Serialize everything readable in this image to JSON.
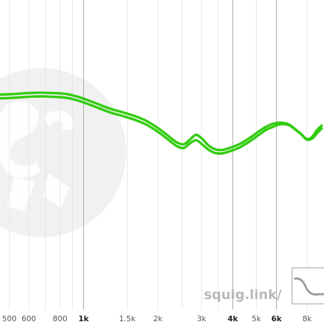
{
  "watermark": {
    "text": "squig.link/"
  },
  "chart_data": {
    "type": "line",
    "x_scale": "log",
    "xlim": [
      460,
      9400
    ],
    "ylim": [
      0,
      100
    ],
    "grid": true,
    "x_ticks": [
      {
        "value": 500,
        "label": "500",
        "major": false
      },
      {
        "value": 600,
        "label": "600",
        "major": false
      },
      {
        "value": 700,
        "label": "",
        "major": false
      },
      {
        "value": 800,
        "label": "800",
        "major": false
      },
      {
        "value": 900,
        "label": "",
        "major": false
      },
      {
        "value": 1000,
        "label": "1k",
        "major": true
      },
      {
        "value": 1500,
        "label": "1.5k",
        "major": false
      },
      {
        "value": 2000,
        "label": "2k",
        "major": false
      },
      {
        "value": 2500,
        "label": "",
        "major": false
      },
      {
        "value": 3000,
        "label": "3k",
        "major": false
      },
      {
        "value": 3500,
        "label": "",
        "major": false
      },
      {
        "value": 4000,
        "label": "4k",
        "major": true
      },
      {
        "value": 5000,
        "label": "5k",
        "major": false
      },
      {
        "value": 6000,
        "label": "6k",
        "major": true
      },
      {
        "value": 8000,
        "label": "8k",
        "major": false
      }
    ],
    "series": [
      {
        "color": "#33cc11",
        "x": [
          460,
          500,
          550,
          600,
          650,
          700,
          750,
          800,
          850,
          900,
          950,
          1000,
          1100,
          1200,
          1300,
          1400,
          1500,
          1650,
          1800,
          1950,
          2100,
          2250,
          2400,
          2550,
          2700,
          2850,
          3000,
          3200,
          3400,
          3600,
          3800,
          4000,
          4300,
          4600,
          4900,
          5200,
          5500,
          5800,
          6100,
          6400,
          6800,
          7200,
          7600,
          8000,
          8400,
          8800,
          9200
        ],
        "y": [
          69.5,
          69.6,
          69.8,
          70.0,
          70.1,
          70.1,
          70.0,
          69.9,
          69.7,
          69.3,
          68.8,
          68.2,
          67.0,
          65.8,
          64.8,
          64.1,
          63.4,
          62.3,
          61.0,
          59.3,
          57.5,
          55.6,
          54.0,
          53.5,
          55.0,
          56.5,
          55.5,
          53.2,
          51.9,
          51.6,
          52.0,
          52.6,
          53.6,
          55.0,
          56.5,
          58.0,
          59.2,
          60.0,
          60.4,
          60.4,
          59.8,
          58.3,
          56.8,
          55.2,
          55.8,
          58.0,
          59.5
        ]
      },
      {
        "color": "#33cc11",
        "x": [
          460,
          500,
          550,
          600,
          650,
          700,
          750,
          800,
          850,
          900,
          950,
          1000,
          1100,
          1200,
          1300,
          1400,
          1500,
          1650,
          1800,
          1950,
          2100,
          2250,
          2400,
          2550,
          2700,
          2850,
          3000,
          3200,
          3400,
          3600,
          3800,
          4000,
          4300,
          4600,
          4900,
          5200,
          5500,
          5800,
          6100,
          6400,
          6800,
          7200,
          7600,
          8000,
          8400,
          8800,
          9200
        ],
        "y": [
          68.3,
          68.4,
          68.6,
          68.8,
          68.9,
          68.9,
          68.8,
          68.7,
          68.5,
          68.1,
          67.6,
          67.0,
          65.8,
          64.6,
          63.6,
          62.9,
          62.2,
          61.1,
          59.8,
          58.1,
          56.3,
          54.4,
          52.8,
          52.3,
          53.8,
          54.8,
          53.7,
          51.8,
          50.7,
          50.5,
          50.9,
          51.5,
          52.5,
          53.9,
          55.4,
          56.9,
          58.2,
          59.0,
          59.7,
          60.0,
          59.6,
          58.2,
          56.7,
          55.0,
          55.3,
          57.0,
          58.6
        ]
      }
    ]
  }
}
